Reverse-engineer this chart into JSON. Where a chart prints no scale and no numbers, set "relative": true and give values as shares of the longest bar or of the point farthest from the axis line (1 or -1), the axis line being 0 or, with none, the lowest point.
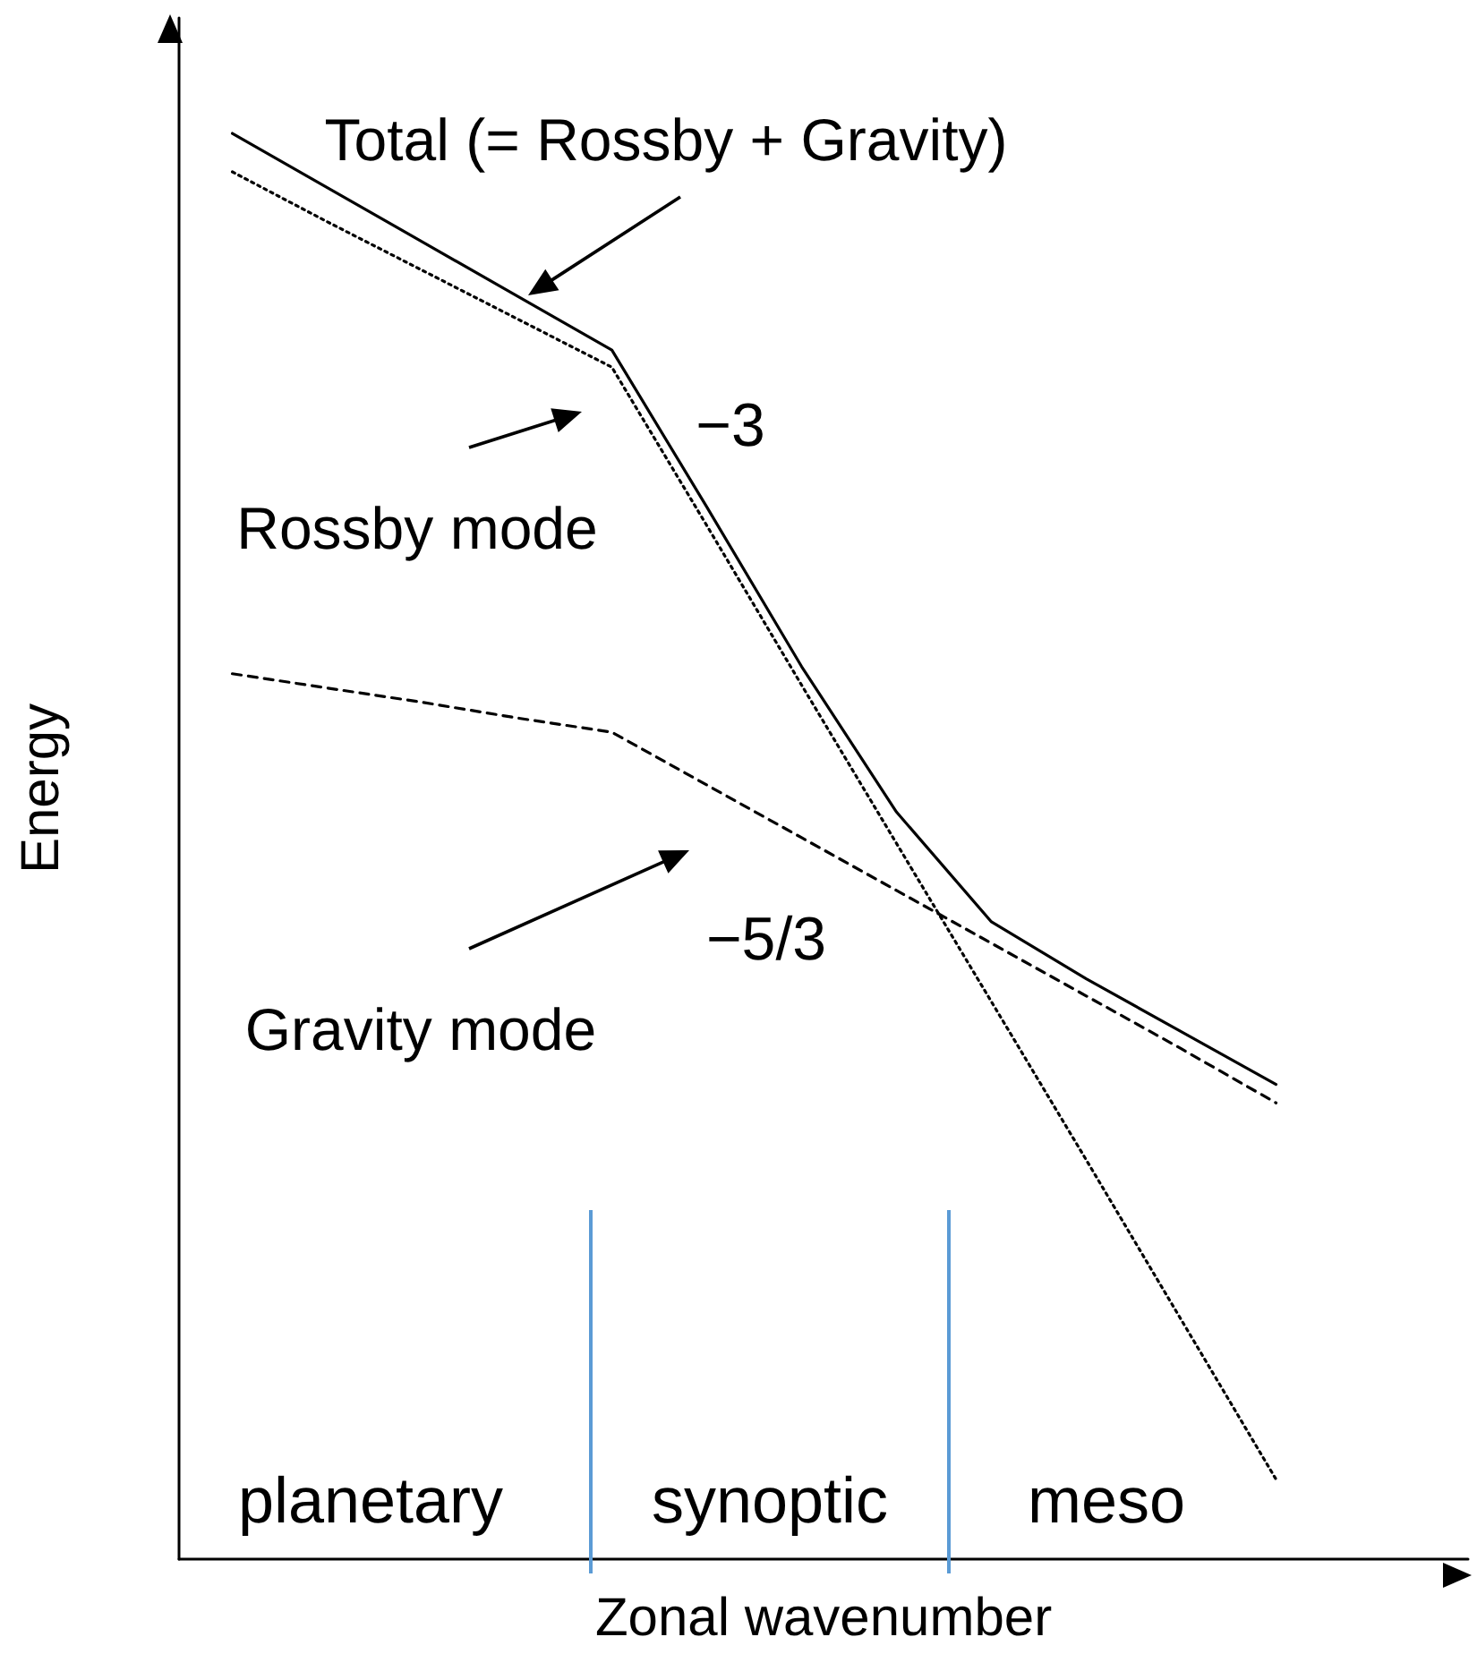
{
  "chart_data": {
    "type": "line",
    "relative": true,
    "xlabel": "Zonal wavenumber",
    "ylabel": "Energy",
    "marker": "none",
    "grid": false,
    "legend": "top left",
    "categories": [
      null,
      null,
      null,
      null,
      null,
      null,
      null,
      null,
      null,
      null,
      null,
      null
    ],
    "series": [
      {
        "name": "Total (= Rossby + Gravity)",
        "color": "#000000",
        "line_style": "solid",
        "values": [
          1.0,
          0.962,
          0.924,
          0.886,
          0.848,
          0.738,
          0.626,
          0.524,
          0.447,
          0.407,
          0.37,
          0.333
        ]
      },
      {
        "name": "Rossby mode",
        "color": "#000000",
        "line_style": "dotted",
        "values": [
          0.973,
          0.938,
          0.904,
          0.87,
          0.836,
          0.725,
          0.613,
          0.502,
          0.391,
          0.28,
          0.168,
          0.056
        ]
      },
      {
        "name": "Gravity mode",
        "color": "#000000",
        "line_style": "dashed",
        "values": [
          0.621,
          0.611,
          0.601,
          0.59,
          0.58,
          0.543,
          0.506,
          0.469,
          0.432,
          0.395,
          0.358,
          0.32
        ]
      }
    ],
    "annotations": [
      "−3",
      "−5/3",
      "planetary",
      "synoptic",
      "meso"
    ]
  }
}
